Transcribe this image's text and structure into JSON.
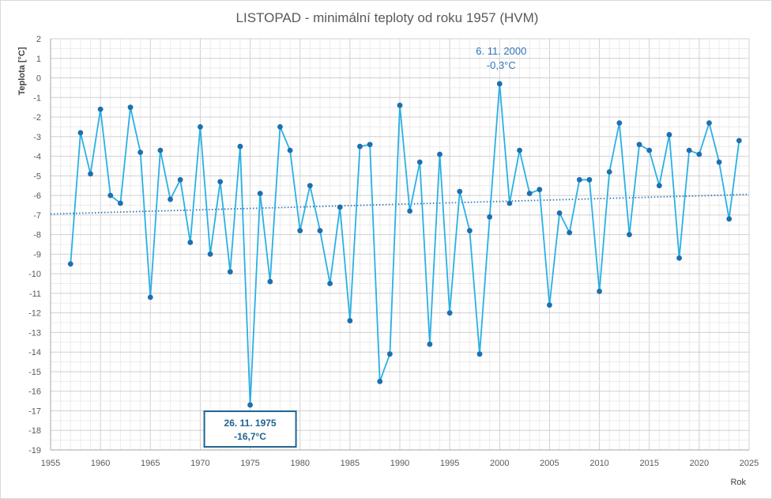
{
  "chart_data": {
    "type": "line",
    "title": "LISTOPAD - minimální teploty od roku 1957 (HVM)",
    "xlabel": "Rok",
    "ylabel": "Teplota [°C]",
    "xlim": [
      1955,
      2025
    ],
    "ylim": [
      -19,
      2
    ],
    "x_ticks": [
      "1955",
      "1960",
      "1965",
      "1970",
      "1975",
      "1980",
      "1985",
      "1990",
      "1995",
      "2000",
      "2005",
      "2010",
      "2015",
      "2020",
      "2025"
    ],
    "y_ticks": [
      "2",
      "1",
      "0",
      "-1",
      "-2",
      "-3",
      "-4",
      "-5",
      "-6",
      "-7",
      "-8",
      "-9",
      "-10",
      "-11",
      "-12",
      "-13",
      "-14",
      "-15",
      "-16",
      "-17",
      "-18",
      "-19"
    ],
    "grid": true,
    "colors": {
      "line": "#2ab0e4",
      "marker": "#1f6fae",
      "trend": "#2e75b6",
      "annot_box": "#1f6391"
    },
    "x": [
      1957,
      1958,
      1959,
      1960,
      1961,
      1962,
      1963,
      1964,
      1965,
      1966,
      1967,
      1968,
      1969,
      1970,
      1971,
      1972,
      1973,
      1974,
      1975,
      1976,
      1977,
      1978,
      1979,
      1980,
      1981,
      1982,
      1983,
      1984,
      1985,
      1986,
      1987,
      1988,
      1989,
      1990,
      1991,
      1992,
      1993,
      1994,
      1995,
      1996,
      1997,
      1998,
      1999,
      2000,
      2001,
      2002,
      2003,
      2004,
      2005,
      2006,
      2007,
      2008,
      2009,
      2010,
      2011,
      2012,
      2013,
      2014,
      2015,
      2016,
      2017,
      2018,
      2019,
      2020,
      2021,
      2022,
      2023,
      2024
    ],
    "values": [
      -9.5,
      -2.8,
      -4.9,
      -1.6,
      -6.0,
      -6.4,
      -1.5,
      -3.8,
      -11.2,
      -3.7,
      -6.2,
      -5.2,
      -8.4,
      -2.5,
      -9.0,
      -5.3,
      -9.9,
      -3.5,
      -16.7,
      -5.9,
      -10.4,
      -2.5,
      -3.7,
      -7.8,
      -5.5,
      -7.8,
      -10.5,
      -6.6,
      -12.4,
      -3.5,
      -3.4,
      -15.5,
      -14.1,
      -1.4,
      -6.8,
      -4.3,
      -13.6,
      -3.9,
      -12.0,
      -5.8,
      -7.8,
      -14.1,
      -7.1,
      -0.3,
      -6.4,
      -3.7,
      -5.9,
      -5.7,
      -11.6,
      -6.9,
      -7.9,
      -5.2,
      -5.2,
      -10.9,
      -4.8,
      -2.3,
      -8.0,
      -3.4,
      -3.7,
      -5.5,
      -2.9,
      -9.2,
      -3.7,
      -3.9,
      -2.3,
      -4.3,
      -7.2,
      -3.2
    ],
    "trend": {
      "x": [
        1955,
        2025
      ],
      "y": [
        -6.95,
        -5.95
      ]
    },
    "annotations": [
      {
        "x": 2000,
        "y": -0.3,
        "line1": "6. 11. 2000",
        "line2": "-0,3°C",
        "boxed": false
      },
      {
        "x": 1975,
        "y": -16.7,
        "line1": "26. 11. 1975",
        "line2": "-16,7°C",
        "boxed": true
      }
    ]
  }
}
